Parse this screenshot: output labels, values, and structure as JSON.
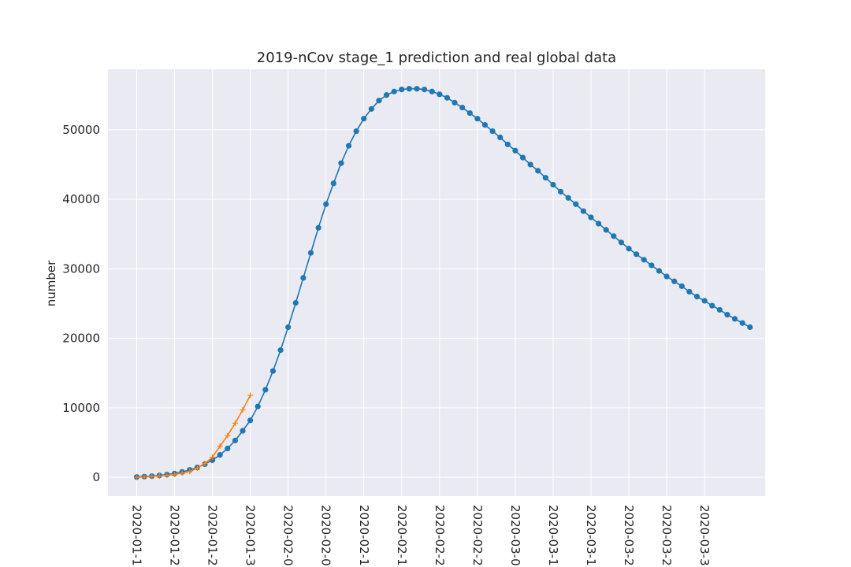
{
  "chart_data": {
    "type": "line",
    "title": "2019-nCov stage_1 prediction and real global data",
    "xlabel": "",
    "ylabel": "number",
    "grid": true,
    "style": "seaborn-darkgrid",
    "colors": {
      "background": "#eaeaf2",
      "grid": "#ffffff",
      "prediction": "#1f77b4",
      "real": "#ff7f0e",
      "text": "#262626"
    },
    "x_tick_labels": [
      "2020-01-1",
      "2020-01-2",
      "2020-01-2",
      "2020-01-3",
      "2020-02-0",
      "2020-02-0",
      "2020-02-1",
      "2020-02-1",
      "2020-02-2",
      "2020-02-2",
      "2020-03-0",
      "2020-03-1",
      "2020-03-1",
      "2020-03-2",
      "2020-03-2",
      "2020-03-3"
    ],
    "x_tick_day_offsets": [
      0,
      5,
      10,
      15,
      20,
      25,
      30,
      35,
      40,
      45,
      50,
      55,
      60,
      65,
      70,
      75
    ],
    "xlim_days": [
      -3.8,
      83
    ],
    "y_ticks": [
      0,
      10000,
      20000,
      30000,
      40000,
      50000
    ],
    "ylim": [
      -2700,
      58700
    ],
    "series": [
      {
        "kind": "prediction",
        "marker": "circle",
        "values": [
          50,
          110,
          180,
          280,
          400,
          550,
          780,
          1070,
          1430,
          1900,
          2480,
          3230,
          4150,
          5300,
          6700,
          8200,
          10200,
          12600,
          15300,
          18300,
          21600,
          25100,
          28700,
          32300,
          35900,
          39300,
          42300,
          45200,
          47700,
          49800,
          51600,
          53000,
          54200,
          55000,
          55500,
          55800,
          55900,
          55900,
          55800,
          55500,
          55100,
          54600,
          53900,
          53200,
          52400,
          51600,
          50700,
          49800,
          48900,
          47900,
          47000,
          46000,
          45000,
          44100,
          43100,
          42100,
          41100,
          40200,
          39300,
          38300,
          37400,
          36500,
          35600,
          34700,
          33800,
          32900,
          32100,
          31300,
          30500,
          29700,
          28900,
          28200,
          27500,
          26700,
          26000,
          25400,
          24700,
          24100,
          23400,
          22800,
          22200,
          21600
        ]
      },
      {
        "kind": "real",
        "marker": "plus",
        "values": [
          0,
          50,
          120,
          200,
          300,
          420,
          600,
          840,
          1320,
          2000,
          2900,
          4500,
          6000,
          7800,
          9700,
          11800
        ]
      }
    ]
  }
}
